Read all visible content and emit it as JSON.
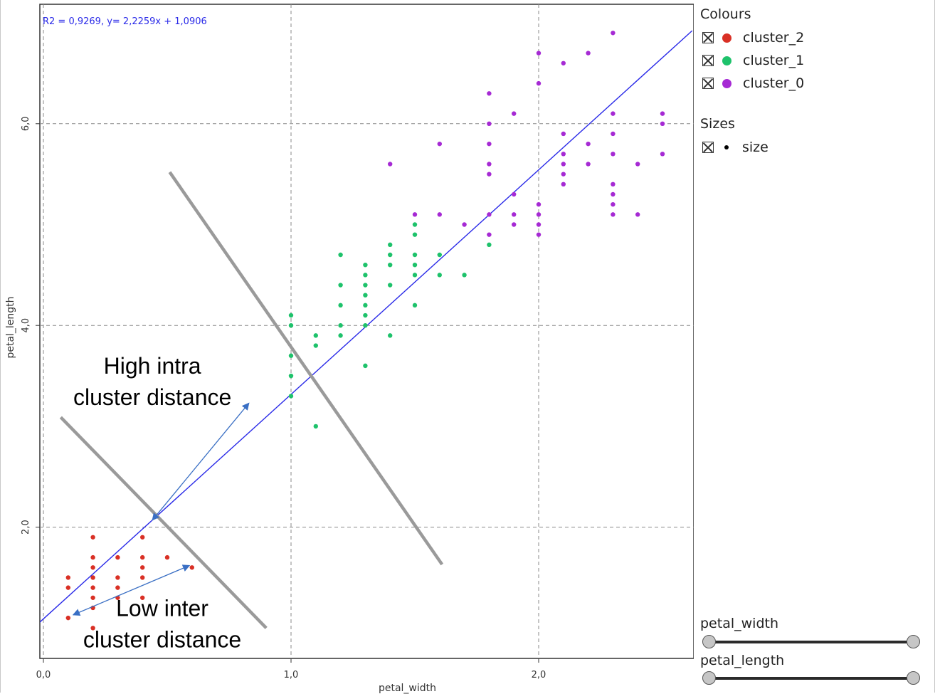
{
  "chart_data": {
    "type": "scatter",
    "title": "",
    "xlabel": "petal_width",
    "ylabel": "petal_length",
    "xlim": [
      -0.02,
      2.6
    ],
    "ylim": [
      0.75,
      7.2
    ],
    "x_ticks": [
      {
        "value": 0.0,
        "label": "0,0"
      },
      {
        "value": 1.0,
        "label": "1,0"
      },
      {
        "value": 2.0,
        "label": "2,0"
      }
    ],
    "y_ticks": [
      {
        "value": 2.0,
        "label": "2,0"
      },
      {
        "value": 4.0,
        "label": "4,0"
      },
      {
        "value": 6.0,
        "label": "6,0"
      }
    ],
    "grid": true,
    "legend_position": "right",
    "regression": {
      "label": "R2 = 0,9269, y= 2,2259x + 1,0906",
      "slope": 2.2259,
      "intercept": 1.0906,
      "color": "#2a2ae8"
    },
    "series": [
      {
        "name": "cluster_2",
        "color": "#d93025",
        "points": [
          [
            0.1,
            1.5
          ],
          [
            0.1,
            1.4
          ],
          [
            0.1,
            1.1
          ],
          [
            0.2,
            1.9
          ],
          [
            0.2,
            1.7
          ],
          [
            0.2,
            1.6
          ],
          [
            0.2,
            1.5
          ],
          [
            0.2,
            1.4
          ],
          [
            0.2,
            1.3
          ],
          [
            0.2,
            1.2
          ],
          [
            0.2,
            1.0
          ],
          [
            0.3,
            1.7
          ],
          [
            0.3,
            1.5
          ],
          [
            0.3,
            1.4
          ],
          [
            0.3,
            1.3
          ],
          [
            0.4,
            1.9
          ],
          [
            0.4,
            1.7
          ],
          [
            0.4,
            1.6
          ],
          [
            0.4,
            1.5
          ],
          [
            0.4,
            1.3
          ],
          [
            0.5,
            1.7
          ],
          [
            0.6,
            1.6
          ]
        ]
      },
      {
        "name": "cluster_1",
        "color": "#1ec26b",
        "points": [
          [
            1.0,
            4.1
          ],
          [
            1.0,
            4.0
          ],
          [
            1.0,
            3.7
          ],
          [
            1.0,
            3.5
          ],
          [
            1.0,
            3.3
          ],
          [
            1.1,
            3.9
          ],
          [
            1.1,
            3.8
          ],
          [
            1.1,
            3.0
          ],
          [
            1.2,
            4.7
          ],
          [
            1.2,
            4.4
          ],
          [
            1.2,
            4.2
          ],
          [
            1.2,
            4.0
          ],
          [
            1.2,
            3.9
          ],
          [
            1.3,
            4.6
          ],
          [
            1.3,
            4.5
          ],
          [
            1.3,
            4.4
          ],
          [
            1.3,
            4.3
          ],
          [
            1.3,
            4.2
          ],
          [
            1.3,
            4.1
          ],
          [
            1.3,
            4.0
          ],
          [
            1.3,
            3.6
          ],
          [
            1.4,
            4.8
          ],
          [
            1.4,
            4.7
          ],
          [
            1.4,
            4.6
          ],
          [
            1.4,
            4.4
          ],
          [
            1.4,
            3.9
          ],
          [
            1.5,
            5.0
          ],
          [
            1.5,
            4.9
          ],
          [
            1.5,
            4.7
          ],
          [
            1.5,
            4.6
          ],
          [
            1.5,
            4.5
          ],
          [
            1.5,
            4.2
          ],
          [
            1.6,
            4.7
          ],
          [
            1.6,
            4.5
          ],
          [
            1.7,
            4.5
          ],
          [
            1.8,
            4.8
          ]
        ]
      },
      {
        "name": "cluster_0",
        "color": "#a62ad4",
        "points": [
          [
            1.4,
            5.6
          ],
          [
            1.5,
            5.1
          ],
          [
            1.6,
            5.8
          ],
          [
            1.6,
            5.1
          ],
          [
            1.7,
            5.0
          ],
          [
            1.8,
            6.3
          ],
          [
            1.8,
            6.0
          ],
          [
            1.8,
            5.8
          ],
          [
            1.8,
            5.6
          ],
          [
            1.8,
            5.5
          ],
          [
            1.8,
            5.1
          ],
          [
            1.8,
            4.9
          ],
          [
            1.9,
            6.1
          ],
          [
            1.9,
            5.3
          ],
          [
            1.9,
            5.1
          ],
          [
            1.9,
            5.0
          ],
          [
            2.0,
            6.7
          ],
          [
            2.0,
            6.4
          ],
          [
            2.0,
            5.2
          ],
          [
            2.0,
            5.1
          ],
          [
            2.0,
            5.0
          ],
          [
            2.0,
            4.9
          ],
          [
            2.1,
            6.6
          ],
          [
            2.1,
            5.9
          ],
          [
            2.1,
            5.7
          ],
          [
            2.1,
            5.6
          ],
          [
            2.1,
            5.5
          ],
          [
            2.1,
            5.4
          ],
          [
            2.2,
            6.7
          ],
          [
            2.2,
            5.8
          ],
          [
            2.2,
            5.6
          ],
          [
            2.3,
            6.9
          ],
          [
            2.3,
            6.1
          ],
          [
            2.3,
            5.9
          ],
          [
            2.3,
            5.7
          ],
          [
            2.3,
            5.4
          ],
          [
            2.3,
            5.3
          ],
          [
            2.3,
            5.2
          ],
          [
            2.3,
            5.1
          ],
          [
            2.4,
            5.6
          ],
          [
            2.4,
            5.1
          ],
          [
            2.5,
            6.1
          ],
          [
            2.5,
            6.0
          ],
          [
            2.5,
            5.7
          ]
        ]
      }
    ],
    "annotations": {
      "separator_lines": [
        {
          "from": [
            0.51,
            5.52
          ],
          "to": [
            1.61,
            1.63
          ]
        },
        {
          "from": [
            0.07,
            3.09
          ],
          "to": [
            0.9,
            1.0
          ]
        }
      ],
      "arrows": [
        {
          "from": [
            0.44,
            2.07
          ],
          "to": [
            0.83,
            3.23
          ]
        },
        {
          "from": [
            0.12,
            1.13
          ],
          "to": [
            0.59,
            1.62
          ]
        }
      ],
      "labels": [
        {
          "text_lines": [
            "High intra",
            "cluster distance"
          ],
          "at": [
            0.44,
            3.52
          ]
        },
        {
          "text_lines": [
            "Low inter",
            "cluster distance"
          ],
          "at": [
            0.48,
            1.12
          ]
        }
      ]
    }
  },
  "legend": {
    "colours_heading": "Colours",
    "colour_items": [
      {
        "label": "cluster_2",
        "color": "#d93025"
      },
      {
        "label": "cluster_1",
        "color": "#1ec26b"
      },
      {
        "label": "cluster_0",
        "color": "#a62ad4"
      }
    ],
    "sizes_heading": "Sizes",
    "size_items": [
      {
        "label": "size"
      }
    ]
  },
  "sliders": [
    {
      "label": "petal_width"
    },
    {
      "label": "petal_length"
    }
  ]
}
